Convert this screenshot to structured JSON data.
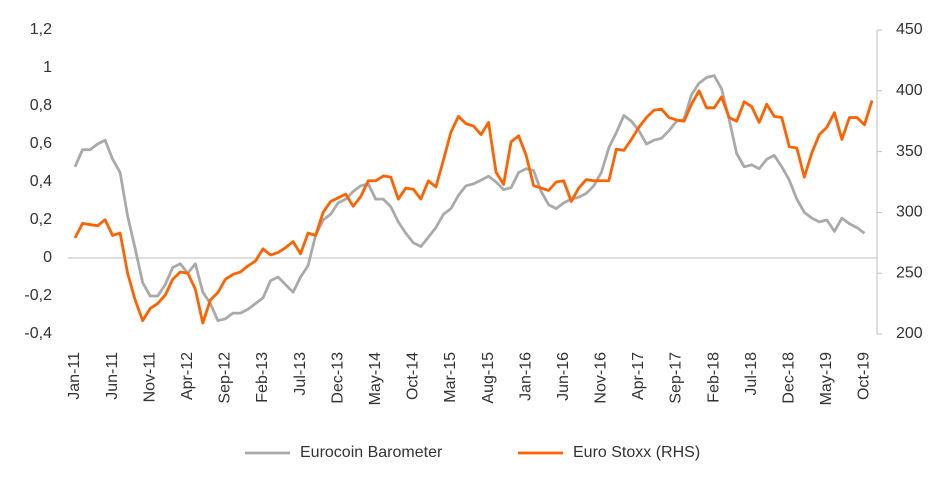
{
  "chart_data": {
    "type": "line",
    "categories": [
      "Jan-11",
      null,
      null,
      null,
      null,
      "Jun-11",
      null,
      null,
      null,
      null,
      "Nov-11",
      null,
      null,
      null,
      null,
      "Apr-12",
      null,
      null,
      null,
      null,
      "Sep-12",
      null,
      null,
      null,
      null,
      "Feb-13",
      null,
      null,
      null,
      null,
      "Jul-13",
      null,
      null,
      null,
      null,
      "Dec-13",
      null,
      null,
      null,
      null,
      "May-14",
      null,
      null,
      null,
      null,
      "Oct-14",
      null,
      null,
      null,
      null,
      "Mar-15",
      null,
      null,
      null,
      null,
      "Aug-15",
      null,
      null,
      null,
      null,
      "Jan-16",
      null,
      null,
      null,
      null,
      "Jun-16",
      null,
      null,
      null,
      null,
      "Nov-16",
      null,
      null,
      null,
      null,
      "Apr-17",
      null,
      null,
      null,
      null,
      "Sep-17",
      null,
      null,
      null,
      null,
      "Feb-18",
      null,
      null,
      null,
      null,
      "Jul-18",
      null,
      null,
      null,
      null,
      "Dec-18",
      null,
      null,
      null,
      null,
      "May-19",
      null,
      null,
      null,
      null,
      "Oct-19",
      null
    ],
    "series": [
      {
        "name": "Eurocoin Barometer",
        "color": "#aaaaaa",
        "axis": "y",
        "values": [
          0.48,
          0.57,
          0.57,
          0.6,
          0.62,
          0.52,
          0.45,
          0.22,
          0.05,
          -0.13,
          -0.2,
          -0.2,
          -0.14,
          -0.05,
          -0.03,
          -0.08,
          -0.03,
          -0.18,
          -0.24,
          -0.33,
          -0.32,
          -0.29,
          -0.29,
          -0.27,
          -0.24,
          -0.21,
          -0.12,
          -0.1,
          -0.14,
          -0.18,
          -0.1,
          -0.04,
          0.12,
          0.2,
          0.23,
          0.29,
          0.31,
          0.35,
          0.38,
          0.39,
          0.31,
          0.31,
          0.27,
          0.19,
          0.13,
          0.08,
          0.06,
          0.11,
          0.16,
          0.23,
          0.26,
          0.33,
          0.38,
          0.39,
          0.41,
          0.43,
          0.4,
          0.36,
          0.37,
          0.45,
          0.47,
          0.46,
          0.35,
          0.28,
          0.26,
          0.29,
          0.31,
          0.32,
          0.34,
          0.38,
          0.45,
          0.58,
          0.66,
          0.75,
          0.72,
          0.67,
          0.6,
          0.62,
          0.63,
          0.67,
          0.72,
          0.73,
          0.86,
          0.92,
          0.95,
          0.96,
          0.89,
          0.73,
          0.55,
          0.48,
          0.49,
          0.47,
          0.52,
          0.54,
          0.48,
          0.41,
          0.31,
          0.24,
          0.21,
          0.19,
          0.2,
          0.14,
          0.21,
          0.18,
          0.16,
          0.13,
          null
        ]
      },
      {
        "name": "Euro Stoxx (RHS)",
        "color": "#ff6200",
        "axis": "y2",
        "values": [
          279,
          291,
          290,
          289,
          294,
          281,
          283,
          250,
          228,
          211,
          221,
          225,
          232,
          245,
          251,
          250,
          237,
          209,
          228,
          234,
          245,
          249,
          251,
          256,
          260,
          270,
          265,
          267,
          271,
          276,
          266,
          283,
          281,
          300,
          309,
          312,
          315,
          305,
          313,
          326,
          326,
          330,
          329,
          311,
          320,
          319,
          311,
          326,
          321,
          343,
          366,
          379,
          373,
          371,
          364,
          374,
          333,
          323,
          358,
          363,
          347,
          322,
          320,
          318,
          325,
          326,
          309,
          320,
          327,
          326,
          326,
          326,
          352,
          351,
          360,
          370,
          378,
          384,
          385,
          378,
          376,
          375,
          389,
          400,
          386,
          386,
          395,
          378,
          375,
          391,
          387,
          374,
          389,
          379,
          378,
          354,
          353,
          329,
          349,
          364,
          370,
          382,
          360,
          378,
          378,
          372,
          392
        ]
      }
    ],
    "ylim": [
      -0.4,
      1.2
    ],
    "yticks": [
      {
        "value": -0.4,
        "label": "-0,4"
      },
      {
        "value": -0.2,
        "label": "-0,2"
      },
      0,
      {
        "value": 0.2,
        "label": "0,2"
      },
      {
        "value": 0.4,
        "label": "0,4"
      },
      {
        "value": 0.6,
        "label": "0,6"
      },
      {
        "value": 0.8,
        "label": "0,8"
      },
      1,
      {
        "value": 1.2,
        "label": "1,2"
      }
    ],
    "y2lim": [
      200,
      450
    ],
    "y2ticks": [
      200,
      250,
      300,
      350,
      400,
      450
    ],
    "legend": "bottom"
  }
}
